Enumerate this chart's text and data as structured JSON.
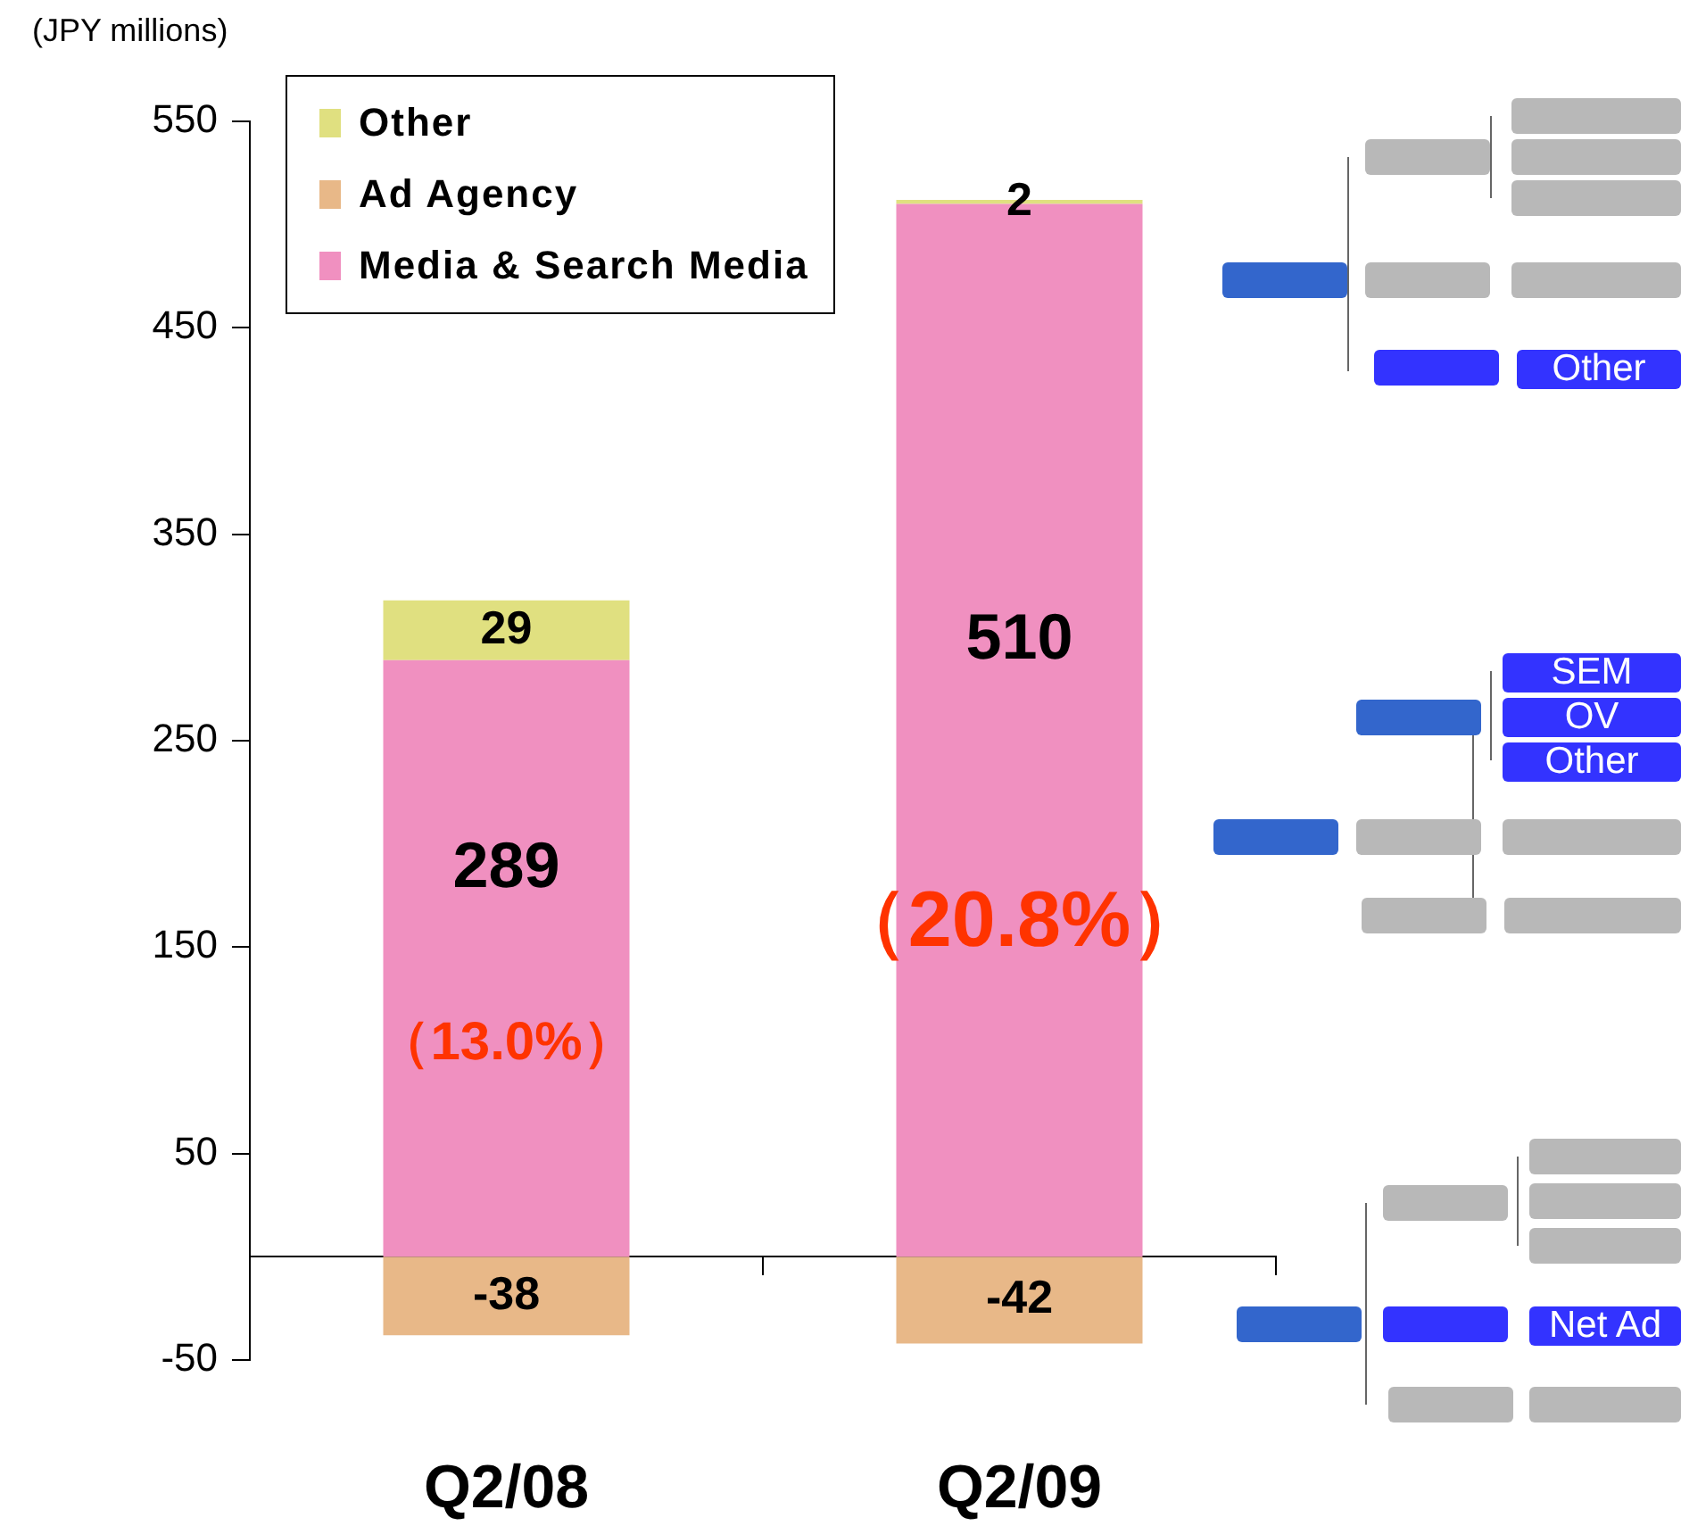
{
  "chart_data": {
    "type": "bar",
    "ylabel": "(JPY millions)",
    "categories": [
      "Q2/08",
      "Q2/09"
    ],
    "stacked": true,
    "series": [
      {
        "name": "Media & Search Media",
        "color": "#f090c0",
        "values": [
          289,
          510
        ]
      },
      {
        "name": "Ad Agency",
        "color": "#e8b888",
        "values": [
          -38,
          -42
        ]
      },
      {
        "name": "Other",
        "color": "#e0e080",
        "values": [
          29,
          2
        ]
      }
    ],
    "ylim": [
      -50,
      550
    ],
    "yticks": [
      -50,
      50,
      150,
      250,
      350,
      450,
      550
    ],
    "grid": false,
    "legend": "top left",
    "data_labels": true,
    "annotations": [
      "（13.0%）",
      "（20.8%）",
      "Other",
      "SEM",
      "OV",
      "Other",
      "Net Ad"
    ]
  }
}
